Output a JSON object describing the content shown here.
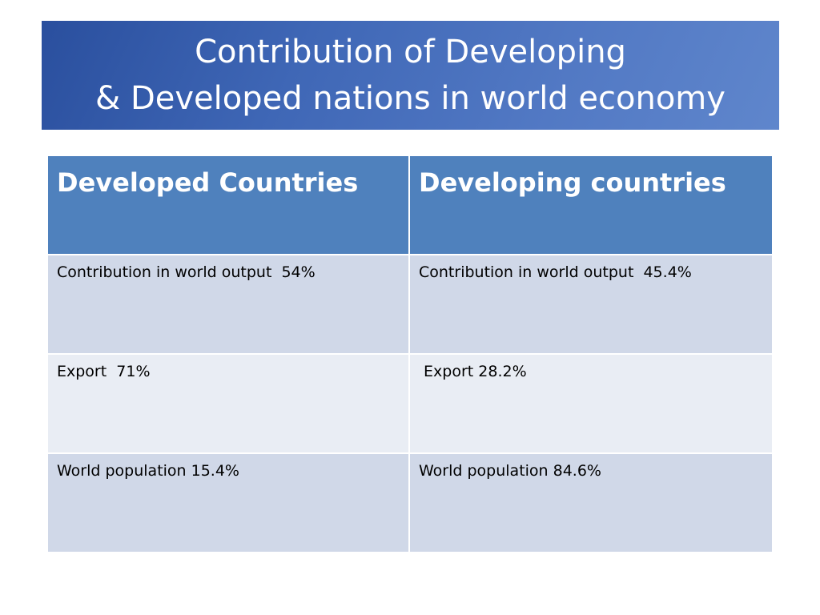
{
  "slide": {
    "title_line1": "Contribution of Developing",
    "title_line2": "& Developed nations in world economy"
  },
  "table": {
    "headers": [
      "Developed Countries",
      "Developing countries"
    ],
    "rows": [
      [
        "Contribution in world output  54%",
        "Contribution in world output  45.4%"
      ],
      [
        "Export  71%",
        " Export 28.2%"
      ],
      [
        "World population 15.4%",
        "World population 84.6%"
      ]
    ]
  },
  "colors": {
    "title_banner": "#4a72bf",
    "header_fill": "#4f81bd",
    "row_band_1": "#d0d8e8",
    "row_band_2": "#e9edf4"
  }
}
